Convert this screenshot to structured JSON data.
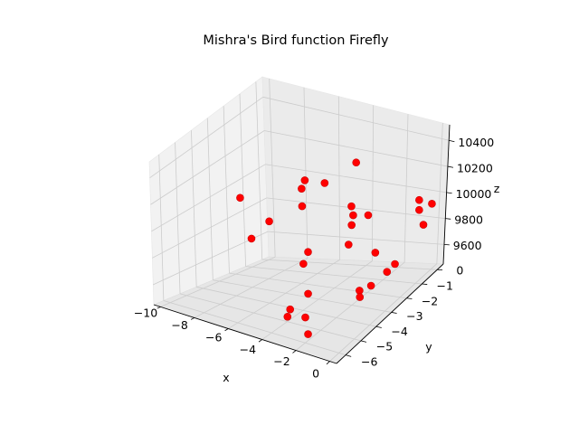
{
  "chart_data": {
    "type": "scatter",
    "dimensions": 3,
    "title": "Mishra's Bird function Firefly",
    "xlabel": "x",
    "ylabel": "y",
    "zlabel": "z",
    "x_ticks": [
      -10,
      -8,
      -6,
      -4,
      -2,
      0
    ],
    "y_ticks": [
      -6,
      -5,
      -4,
      -3,
      -2,
      -1,
      0
    ],
    "z_ticks": [
      9600,
      9800,
      10000,
      10200,
      10400
    ],
    "xlim": [
      -10.4,
      0.4
    ],
    "ylim": [
      -6.6,
      0.4
    ],
    "zlim": [
      9450,
      10520
    ],
    "grid": true,
    "marker_color": "#ff0000",
    "points": [
      {
        "x": -9.6,
        "y": -2.0,
        "z": 9950
      },
      {
        "x": -8.0,
        "y": -3.0,
        "z": 9780
      },
      {
        "x": -7.7,
        "y": -2.2,
        "z": 9850
      },
      {
        "x": -6.9,
        "y": -1.0,
        "z": 10000
      },
      {
        "x": -6.8,
        "y": -0.9,
        "z": 10050
      },
      {
        "x": -6.4,
        "y": -1.5,
        "z": 9930
      },
      {
        "x": -6.2,
        "y": -0.3,
        "z": 10000
      },
      {
        "x": -5.3,
        "y": -2.3,
        "z": 9700
      },
      {
        "x": -5.2,
        "y": -2.7,
        "z": 9650
      },
      {
        "x": -4.2,
        "y": -4.6,
        "z": 9500
      },
      {
        "x": -3.5,
        "y": -4.2,
        "z": 9600
      },
      {
        "x": -3.7,
        "y": -5.3,
        "z": 9520
      },
      {
        "x": -3.2,
        "y": -4.7,
        "z": 9480
      },
      {
        "x": -2.2,
        "y": -5.6,
        "z": 9470
      },
      {
        "x": -3.3,
        "y": -1.4,
        "z": 10300
      },
      {
        "x": -3.0,
        "y": -2.0,
        "z": 10050
      },
      {
        "x": -2.8,
        "y": -2.1,
        "z": 10000
      },
      {
        "x": -2.7,
        "y": -2.3,
        "z": 9950
      },
      {
        "x": -2.5,
        "y": -2.7,
        "z": 9850
      },
      {
        "x": -2.1,
        "y": -1.9,
        "z": 10000
      },
      {
        "x": -1.0,
        "y": -2.6,
        "z": 9820
      },
      {
        "x": -0.9,
        "y": -3.7,
        "z": 9650
      },
      {
        "x": -0.6,
        "y": -4.0,
        "z": 9640
      },
      {
        "x": -0.4,
        "y": -3.5,
        "z": 9680
      },
      {
        "x": -0.3,
        "y": -0.6,
        "z": 10030
      },
      {
        "x": -0.1,
        "y": -0.8,
        "z": 9980
      },
      {
        "x": -0.1,
        "y": -2.8,
        "z": 9720
      },
      {
        "x": 0.0,
        "y": -2.4,
        "z": 9740
      },
      {
        "x": 0.0,
        "y": -0.6,
        "z": 9850
      },
      {
        "x": 0.1,
        "y": -0.2,
        "z": 9970
      }
    ]
  }
}
